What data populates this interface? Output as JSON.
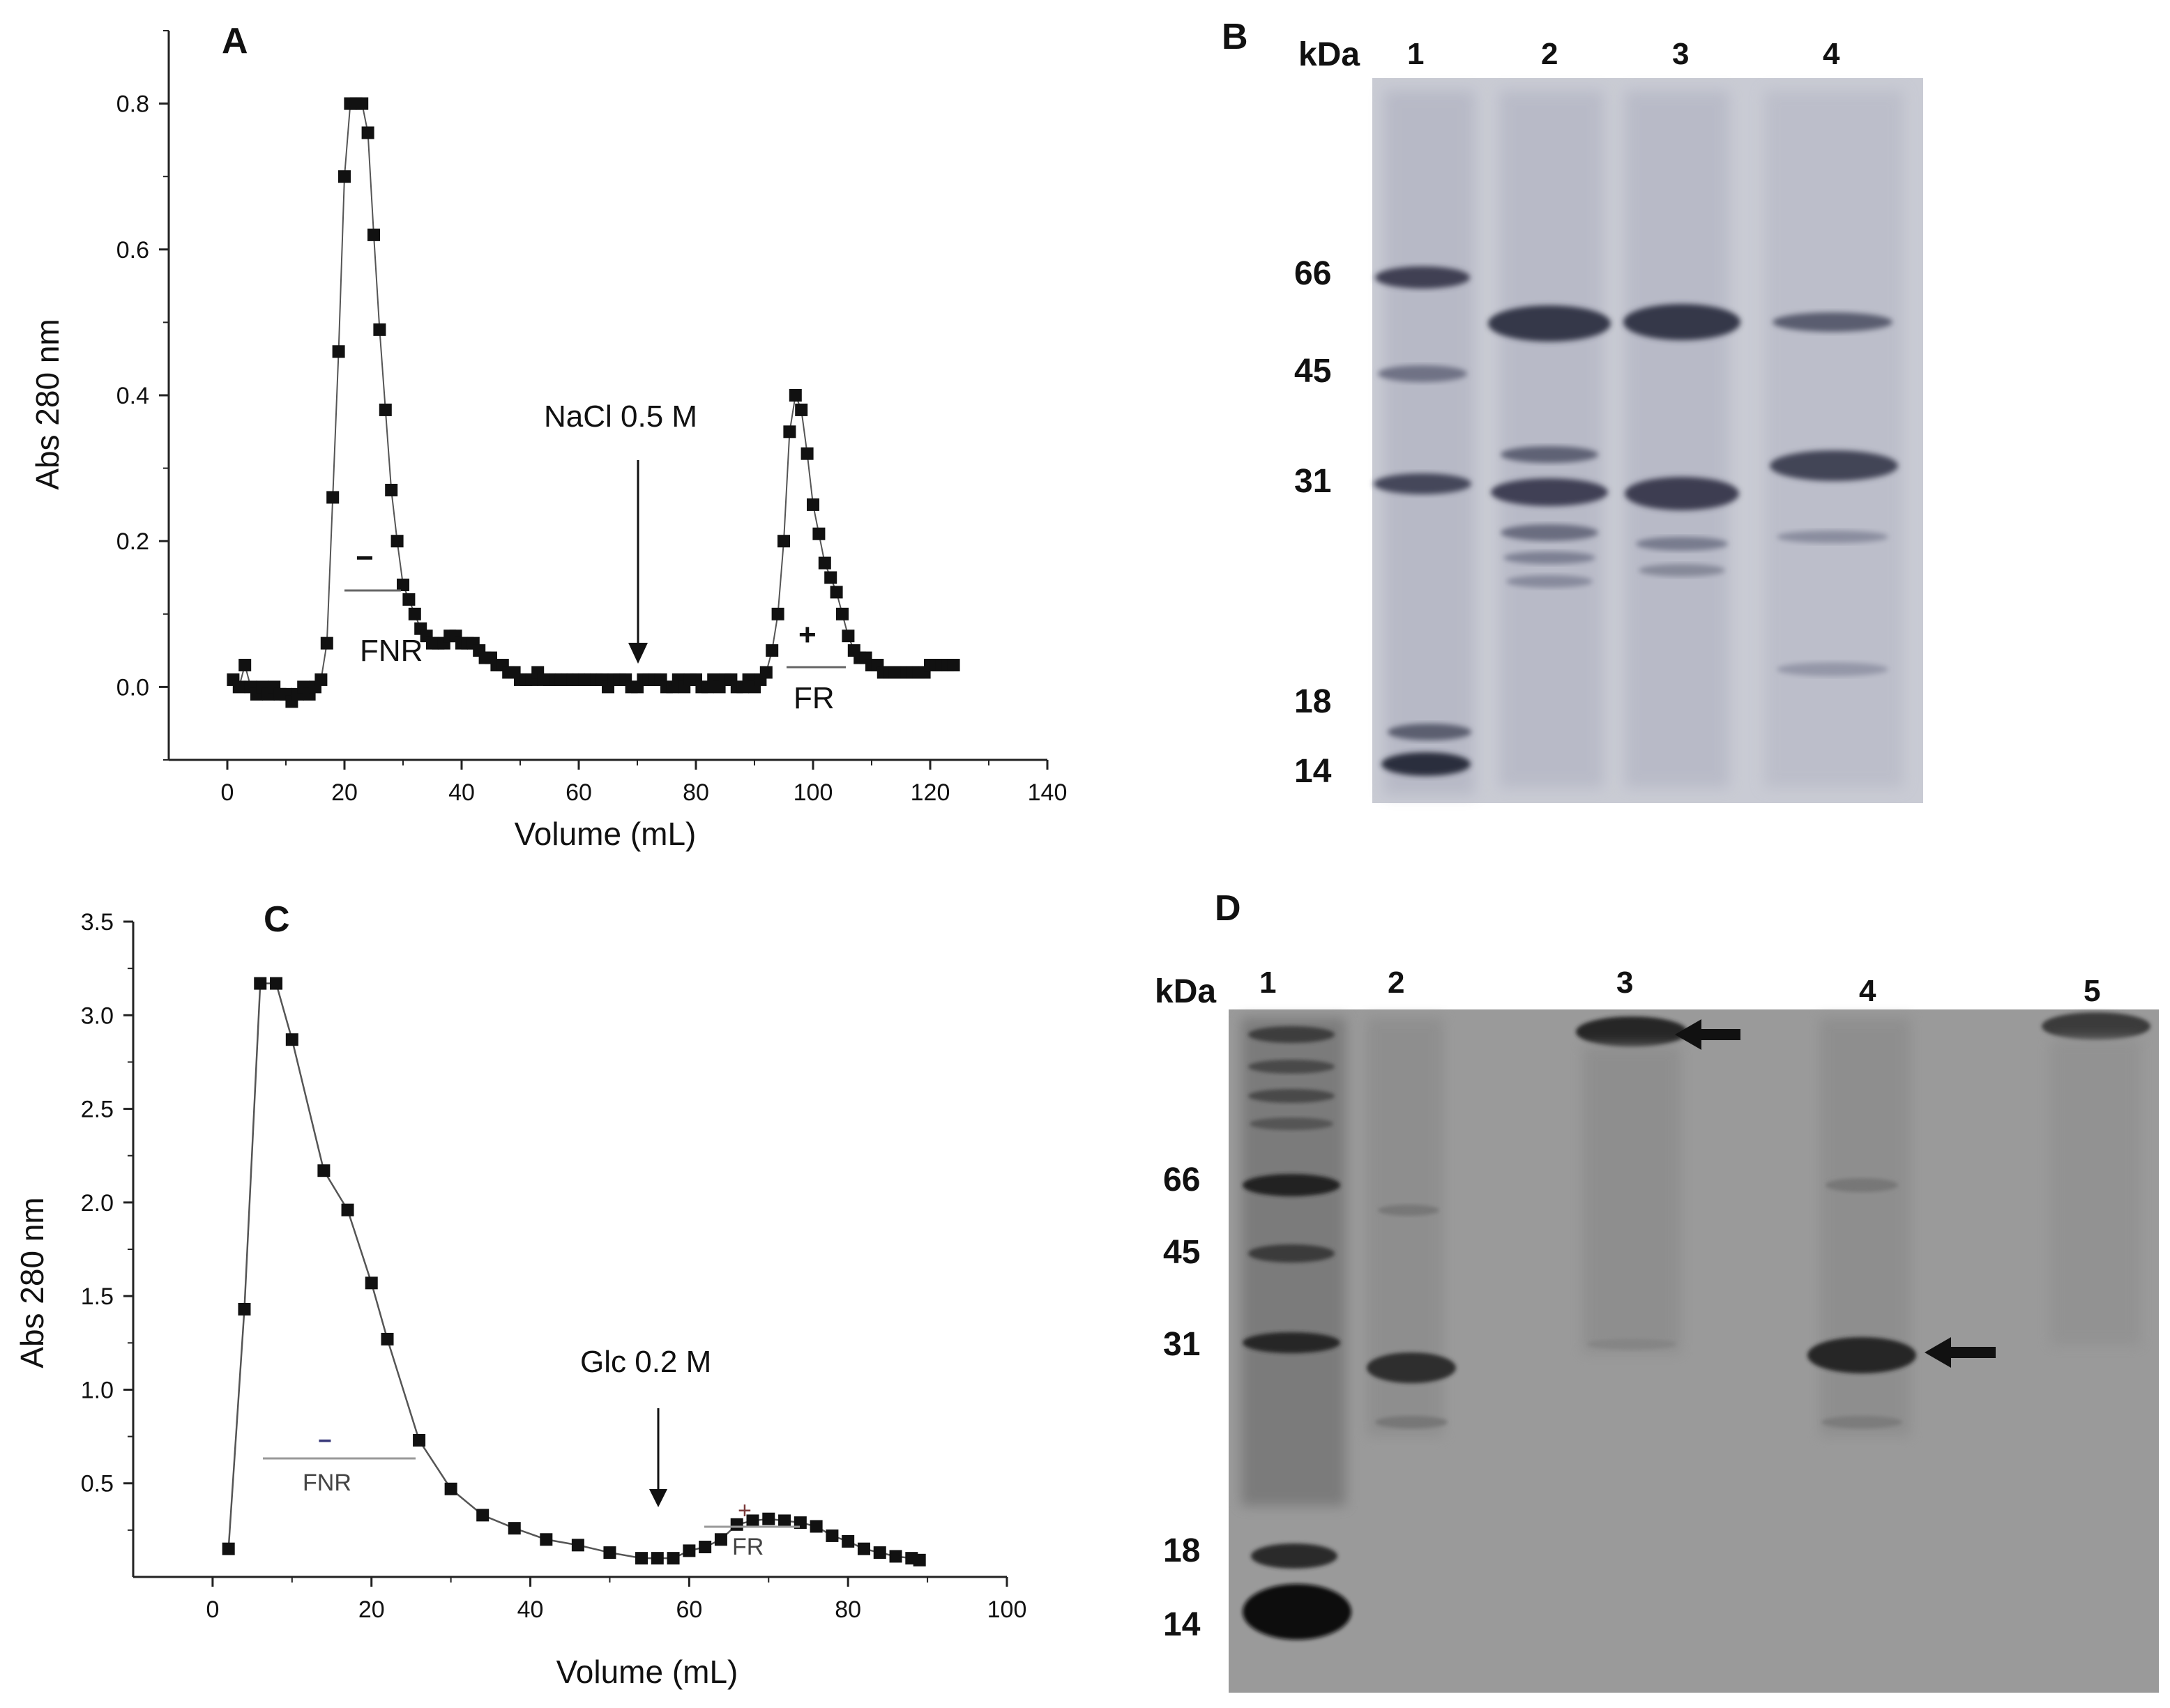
{
  "chart_data": [
    {
      "panel": "A",
      "type": "line",
      "xlabel": "Volume (mL)",
      "ylabel": "Abs 280 nm",
      "xlim": [
        -10,
        140
      ],
      "ylim": [
        -0.1,
        0.9
      ],
      "xticks": [
        "0",
        "20",
        "40",
        "60",
        "80",
        "100",
        "120",
        "140"
      ],
      "yticks": [
        "0.0",
        "0.2",
        "0.4",
        "0.6",
        "0.8"
      ],
      "grid": false,
      "series": [
        {
          "x": [
            1,
            2,
            3,
            4,
            5,
            6,
            7,
            8,
            9,
            10,
            11,
            12,
            13,
            14,
            15,
            16,
            17,
            18,
            19,
            20,
            21,
            22,
            23,
            24,
            25,
            26,
            27,
            28,
            29,
            30,
            31,
            32,
            33,
            34,
            35,
            36,
            37,
            38,
            39,
            40,
            41,
            42,
            43,
            44,
            45,
            46,
            47,
            48,
            49,
            50,
            51,
            52,
            53,
            54,
            55,
            56,
            57,
            58,
            59,
            60,
            61,
            62,
            63,
            64,
            65,
            66,
            67,
            68,
            69,
            70,
            71,
            72,
            73,
            74,
            75,
            76,
            77,
            78,
            79,
            80,
            81,
            82,
            83,
            84,
            85,
            86,
            87,
            88,
            89,
            90,
            91,
            92,
            93,
            94,
            95,
            96,
            97,
            98,
            99,
            100,
            101,
            102,
            103,
            104,
            105,
            106,
            107,
            108,
            109,
            110,
            111,
            112,
            113,
            114,
            115,
            116,
            117,
            118,
            119,
            120,
            121,
            122,
            123,
            124
          ],
          "values": [
            0.01,
            0.0,
            0.03,
            0.0,
            -0.01,
            0.0,
            -0.01,
            0.0,
            -0.01,
            -0.01,
            -0.02,
            -0.01,
            0.0,
            -0.01,
            0.0,
            0.01,
            0.06,
            0.26,
            0.46,
            0.7,
            0.8,
            0.8,
            0.8,
            0.76,
            0.62,
            0.49,
            0.38,
            0.27,
            0.2,
            0.14,
            0.12,
            0.1,
            0.08,
            0.07,
            0.06,
            0.06,
            0.06,
            0.07,
            0.07,
            0.06,
            0.06,
            0.06,
            0.05,
            0.04,
            0.04,
            0.03,
            0.03,
            0.02,
            0.02,
            0.01,
            0.01,
            0.01,
            0.02,
            0.01,
            0.01,
            0.01,
            0.01,
            0.01,
            0.01,
            0.01,
            0.01,
            0.01,
            0.01,
            0.01,
            0.0,
            0.01,
            0.01,
            0.01,
            0.0,
            0.0,
            0.01,
            0.01,
            0.01,
            0.01,
            0.0,
            0.0,
            0.01,
            0.0,
            0.01,
            0.01,
            0.0,
            0.0,
            0.01,
            0.0,
            0.01,
            0.01,
            0.0,
            0.0,
            0.01,
            0.0,
            0.01,
            0.02,
            0.05,
            0.1,
            0.2,
            0.35,
            0.4,
            0.38,
            0.32,
            0.25,
            0.21,
            0.17,
            0.15,
            0.13,
            0.1,
            0.07,
            0.05,
            0.04,
            0.04,
            0.03,
            0.03,
            0.02,
            0.02,
            0.02,
            0.02,
            0.02,
            0.02,
            0.02,
            0.02,
            0.03,
            0.03,
            0.03,
            0.03,
            0.03
          ]
        }
      ],
      "annotations": {
        "arrow_label": "NaCl 0.5 M",
        "arrow_x": 70,
        "peak1_sign": "−",
        "peak1_label": "FNR",
        "peak2_sign": "+",
        "peak2_label": "FR"
      }
    },
    {
      "panel": "C",
      "type": "line",
      "xlabel": "Volume (mL)",
      "ylabel": "Abs 280 nm",
      "xlim": [
        -10,
        100
      ],
      "ylim": [
        0,
        3.5
      ],
      "xticks": [
        "0",
        "20",
        "40",
        "60",
        "80",
        "100"
      ],
      "yticks": [
        "0.5",
        "1.0",
        "1.5",
        "2.0",
        "2.5",
        "3.0",
        "3.5"
      ],
      "grid": false,
      "series": [
        {
          "x": [
            2,
            4,
            6,
            8,
            10,
            14,
            17,
            20,
            22,
            26,
            30,
            34,
            38,
            42,
            46,
            50,
            54,
            56,
            58,
            60,
            62,
            64,
            66,
            68,
            70,
            72,
            74,
            76,
            78,
            80,
            82,
            84,
            86,
            88,
            89
          ],
          "values": [
            0.15,
            1.43,
            3.17,
            3.17,
            2.87,
            2.17,
            1.96,
            1.57,
            1.27,
            0.73,
            0.47,
            0.33,
            0.26,
            0.2,
            0.17,
            0.13,
            0.1,
            0.1,
            0.1,
            0.14,
            0.16,
            0.2,
            0.28,
            0.3,
            0.31,
            0.3,
            0.29,
            0.27,
            0.22,
            0.19,
            0.15,
            0.13,
            0.11,
            0.1,
            0.09
          ]
        }
      ],
      "annotations": {
        "arrow_label": "Glc 0.2 M",
        "arrow_x": 57,
        "peak1_sign": "−",
        "peak1_label": "FNR",
        "peak2_sign": "+",
        "peak2_label": "FR"
      }
    }
  ],
  "gel_b": {
    "letter": "B",
    "kda_label": "kDa",
    "lane_labels": [
      "1",
      "2",
      "3",
      "4"
    ],
    "markers": [
      "66",
      "45",
      "31",
      "18",
      "14"
    ]
  },
  "gel_d": {
    "letter": "D",
    "kda_label": "kDa",
    "lane_labels": [
      "1",
      "2",
      "3",
      "4",
      "5"
    ],
    "markers": [
      "66",
      "45",
      "31",
      "18",
      "14"
    ]
  },
  "colors": {
    "marker": "#111111",
    "line": "#555555",
    "gel_b_background": "#c9cbd4",
    "gel_d_background": "#9a9a9a"
  }
}
